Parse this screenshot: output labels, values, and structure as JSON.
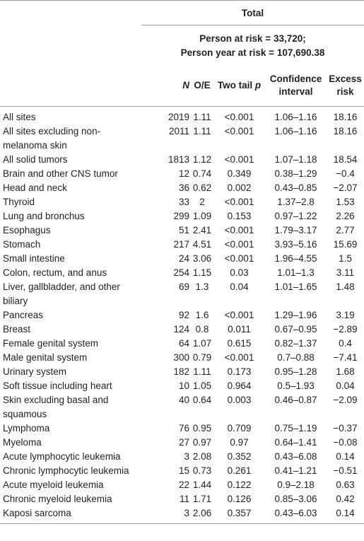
{
  "table": {
    "title": "Total",
    "subtitle": [
      "Person at risk = 33,720;",
      "Person year at risk = 107,690.38"
    ],
    "columns": [
      "N",
      "O/E",
      [
        "Two tail",
        "p"
      ],
      "Confidence interval",
      "Excess risk"
    ],
    "rows": [
      [
        "All sites",
        "2019",
        "1.11",
        "<0.001",
        "1.06–1.16",
        "18.16"
      ],
      [
        "All sites excluding non-melanoma skin",
        "2011",
        "1.11",
        "<0.001",
        "1.06–1.16",
        "18.16"
      ],
      [
        "All solid tumors",
        "1813",
        "1.12",
        "<0.001",
        "1.07–1.18",
        "18.54"
      ],
      [
        "Brain and other CNS tumor",
        "12",
        "0.74",
        "0.349",
        "0.38–1.29",
        "−0.4"
      ],
      [
        "Head and neck",
        "36",
        "0.62",
        "0.002",
        "0.43–0.85",
        "−2.07"
      ],
      [
        "Thyroid",
        "33",
        "2",
        "<0.001",
        "1.37–2.8",
        "1.53"
      ],
      [
        "Lung and bronchus",
        "299",
        "1.09",
        "0.153",
        "0.97–1.22",
        "2.26"
      ],
      [
        "Esophagus",
        "51",
        "2.41",
        "<0.001",
        "1.79–3.17",
        "2.77"
      ],
      [
        "Stomach",
        "217",
        "4.51",
        "<0.001",
        "3.93–5.16",
        "15.69"
      ],
      [
        "Small intestine",
        "24",
        "3.06",
        "<0.001",
        "1.96–4.55",
        "1.5"
      ],
      [
        "Colon, rectum, and anus",
        "254",
        "1.15",
        "0.03",
        "1.01–1.3",
        "3.11"
      ],
      [
        "Liver, gallbladder, and other biliary",
        "69",
        "1.3",
        "0.04",
        "1.01–1.65",
        "1.48"
      ],
      [
        "Pancreas",
        "92",
        "1.6",
        "<0.001",
        "1.29–1.96",
        "3.19"
      ],
      [
        "Breast",
        "124",
        "0.8",
        "0.011",
        "0.67–0.95",
        "−2.89"
      ],
      [
        "Female genital system",
        "64",
        "1.07",
        "0.615",
        "0.82–1.37",
        "0.4"
      ],
      [
        "Male genital system",
        "300",
        "0.79",
        "<0.001",
        "0.7–0.88",
        "−7.41"
      ],
      [
        "Urinary system",
        "182",
        "1.11",
        "0.173",
        "0.95–1.28",
        "1.68"
      ],
      [
        "Soft tissue including heart",
        "10",
        "1.05",
        "0.964",
        "0.5–1.93",
        "0.04"
      ],
      [
        "Skin excluding basal and squamous",
        "40",
        "0.64",
        "0.003",
        "0.46–0.87",
        "−2.09"
      ],
      [
        "Lymphoma",
        "76",
        "0.95",
        "0.709",
        "0.75–1.19",
        "−0.37"
      ],
      [
        "Myeloma",
        "27",
        "0.97",
        "0.97",
        "0.64–1.41",
        "−0.08"
      ],
      [
        "Acute lymphocytic leukemia",
        "3",
        "2.08",
        "0.352",
        "0.43–6.08",
        "0.14"
      ],
      [
        "Chronic lymphocytic leukemia",
        "15",
        "0.73",
        "0.261",
        "0.41–1.21",
        "−0.51"
      ],
      [
        "Acute myeloid leukemia",
        "22",
        "1.44",
        "0.122",
        "0.9–2.18",
        "0.63"
      ],
      [
        "Chronic myeloid leukemia",
        "11",
        "1.71",
        "0.126",
        "0.85–3.06",
        "0.42"
      ],
      [
        "Kaposi sarcoma",
        "3",
        "2.06",
        "0.357",
        "0.43–6.03",
        "0.14"
      ]
    ]
  }
}
